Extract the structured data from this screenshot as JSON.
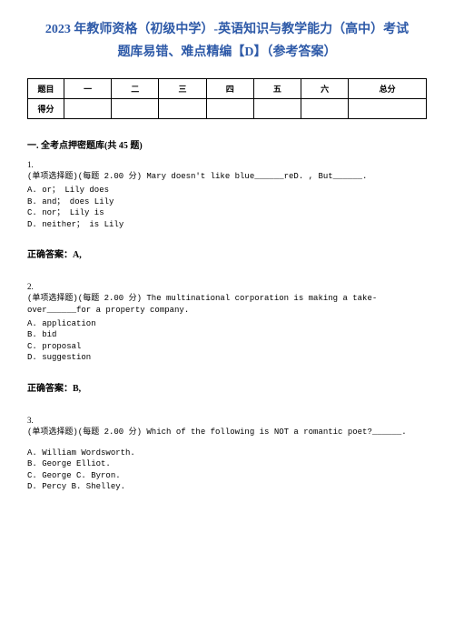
{
  "title_line1": "2023 年教师资格（初级中学）-英语知识与教学能力（高中）考试",
  "title_line2": "题库易错、难点精编【D】（参考答案）",
  "table": {
    "row1": [
      "题目",
      "一",
      "二",
      "三",
      "四",
      "五",
      "六",
      "总分"
    ],
    "row2": [
      "得分",
      "",
      "",
      "",
      "",
      "",
      "",
      ""
    ]
  },
  "section_title": "一. 全考点押密题库(共 45 题)",
  "q1": {
    "num": "1.",
    "text": "(单项选择题)(每题 2.00 分) Mary doesn't like blue______reD. , But______.",
    "optA": "A. or；  Lily does",
    "optB": "B. and；  does Lily",
    "optC": "C. nor；  Lily is",
    "optD": "D. neither；  is Lily",
    "answer": "正确答案：A,"
  },
  "q2": {
    "num": "2.",
    "text": "(单项选择题)(每题 2.00 分) The multinational corporation is making a take-over______for a property company.",
    "optA": "A. application",
    "optB": "B. bid",
    "optC": "C. proposal",
    "optD": "D. suggestion",
    "answer": "正确答案：B,"
  },
  "q3": {
    "num": "3.",
    "text": "(单项选择题)(每题 2.00 分) Which of the following is NOT a romantic poet?______.",
    "optA": "A. William Wordsworth.",
    "optB": "B. George Elliot.",
    "optC": "C. George C. Byron.",
    "optD": "D. Percy B. Shelley."
  },
  "colors": {
    "title": "#2e5aa8",
    "text": "#000000",
    "background": "#ffffff",
    "border": "#000000"
  }
}
